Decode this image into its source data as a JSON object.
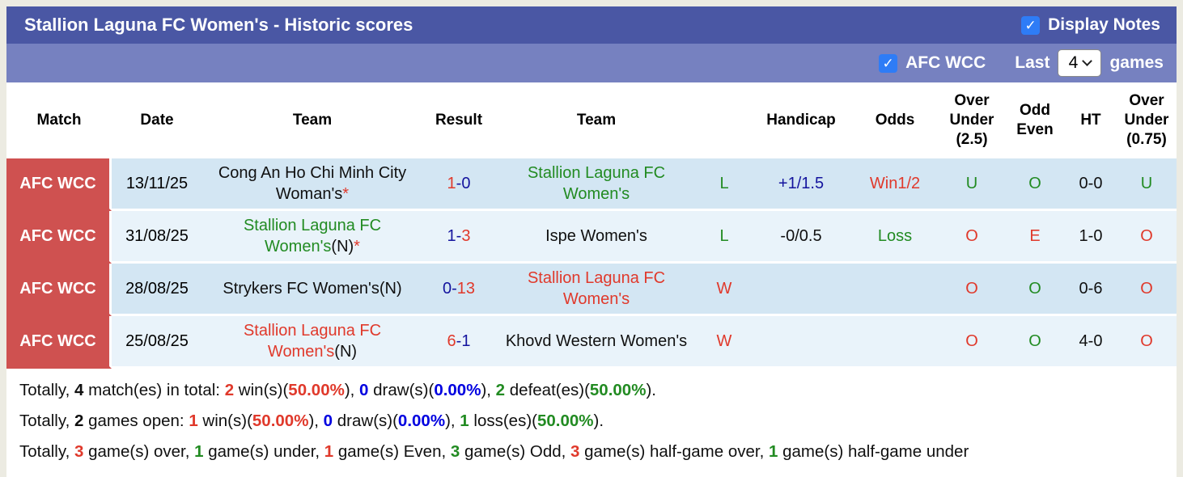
{
  "header": {
    "title": "Stallion Laguna FC Women's - Historic scores",
    "display_notes_label": "Display Notes",
    "display_notes_checked": true
  },
  "filter": {
    "competition_label": "AFC WCC",
    "competition_checked": true,
    "last_label": "Last",
    "games_count": "4",
    "games_label": "games"
  },
  "colors": {
    "red": "#e0392b",
    "green": "#228B22",
    "navy": "#14149e",
    "blue": "#0000e0",
    "black": "#101010",
    "title_bar": "#4a57a4",
    "filter_bar": "#7681c0",
    "checkbox_blue": "#2e7cf6",
    "match_cell_red": "#cf5150",
    "row_dark": "#d3e6f3",
    "row_light": "#e9f3fa"
  },
  "table": {
    "columns": [
      "Match",
      "Date",
      "Team",
      "Result",
      "Team",
      "",
      "Handicap",
      "Odds",
      "Over Under (2.5)",
      "Odd Even",
      "HT",
      "Over Under (0.75)"
    ],
    "rows": [
      {
        "match": "AFC WCC",
        "date": "13/11/25",
        "home": [
          {
            "t": "Cong An Ho Chi Minh City Woman's"
          },
          {
            "t": "*",
            "c": "red"
          }
        ],
        "result": [
          {
            "t": "1",
            "c": "red"
          },
          {
            "t": "-",
            "c": "navy"
          },
          {
            "t": "0",
            "c": "navy"
          }
        ],
        "away": [
          {
            "t": "Stallion Laguna FC Women's",
            "c": "green"
          }
        ],
        "wl": {
          "t": "L",
          "c": "green"
        },
        "handicap": {
          "t": "+1/1.5",
          "c": "navy"
        },
        "odds": {
          "t": "Win1/2",
          "c": "red"
        },
        "ou25": {
          "t": "U",
          "c": "green"
        },
        "odd_even": {
          "t": "O",
          "c": "green"
        },
        "ht": {
          "t": "0-0"
        },
        "ou075": {
          "t": "U",
          "c": "green"
        }
      },
      {
        "match": "AFC WCC",
        "date": "31/08/25",
        "home": [
          {
            "t": "Stallion Laguna FC Women's",
            "c": "green"
          },
          {
            "t": "(N)"
          },
          {
            "t": "*",
            "c": "red"
          }
        ],
        "result": [
          {
            "t": "1",
            "c": "navy"
          },
          {
            "t": "-",
            "c": "navy"
          },
          {
            "t": "3",
            "c": "red"
          }
        ],
        "away": [
          {
            "t": "Ispe Women's"
          }
        ],
        "wl": {
          "t": "L",
          "c": "green"
        },
        "handicap": {
          "t": "-0/0.5",
          "c": "black"
        },
        "odds": {
          "t": "Loss",
          "c": "green"
        },
        "ou25": {
          "t": "O",
          "c": "red"
        },
        "odd_even": {
          "t": "E",
          "c": "red"
        },
        "ht": {
          "t": "1-0"
        },
        "ou075": {
          "t": "O",
          "c": "red"
        }
      },
      {
        "match": "AFC WCC",
        "date": "28/08/25",
        "home": [
          {
            "t": "Strykers FC Women's(N)"
          }
        ],
        "result": [
          {
            "t": "0",
            "c": "navy"
          },
          {
            "t": "-",
            "c": "navy"
          },
          {
            "t": "13",
            "c": "red"
          }
        ],
        "away": [
          {
            "t": "Stallion Laguna FC Women's",
            "c": "red"
          }
        ],
        "wl": {
          "t": "W",
          "c": "red"
        },
        "handicap": {
          "t": ""
        },
        "odds": {
          "t": ""
        },
        "ou25": {
          "t": "O",
          "c": "red"
        },
        "odd_even": {
          "t": "O",
          "c": "green"
        },
        "ht": {
          "t": "0-6"
        },
        "ou075": {
          "t": "O",
          "c": "red"
        }
      },
      {
        "match": "AFC WCC",
        "date": "25/08/25",
        "home": [
          {
            "t": "Stallion Laguna FC Women's",
            "c": "red"
          },
          {
            "t": "(N)"
          }
        ],
        "result": [
          {
            "t": "6",
            "c": "red"
          },
          {
            "t": "-",
            "c": "navy"
          },
          {
            "t": "1",
            "c": "navy"
          }
        ],
        "away": [
          {
            "t": "Khovd Western Women's"
          }
        ],
        "wl": {
          "t": "W",
          "c": "red"
        },
        "handicap": {
          "t": ""
        },
        "odds": {
          "t": ""
        },
        "ou25": {
          "t": "O",
          "c": "red"
        },
        "odd_even": {
          "t": "O",
          "c": "green"
        },
        "ht": {
          "t": "4-0"
        },
        "ou075": {
          "t": "O",
          "c": "red"
        }
      }
    ]
  },
  "summary": {
    "lines": [
      [
        {
          "t": "Totally, "
        },
        {
          "t": "4",
          "b": true
        },
        {
          "t": " match(es) in total: "
        },
        {
          "t": "2",
          "c": "red",
          "b": true
        },
        {
          "t": " win(s)("
        },
        {
          "t": "50.00%",
          "c": "red",
          "b": true
        },
        {
          "t": "), "
        },
        {
          "t": "0",
          "c": "blue",
          "b": true
        },
        {
          "t": " draw(s)("
        },
        {
          "t": "0.00%",
          "c": "blue",
          "b": true
        },
        {
          "t": "), "
        },
        {
          "t": "2",
          "c": "green",
          "b": true
        },
        {
          "t": " defeat(es)("
        },
        {
          "t": "50.00%",
          "c": "green",
          "b": true
        },
        {
          "t": ")."
        }
      ],
      [
        {
          "t": "Totally, "
        },
        {
          "t": "2",
          "b": true
        },
        {
          "t": " games open: "
        },
        {
          "t": "1",
          "c": "red",
          "b": true
        },
        {
          "t": " win(s)("
        },
        {
          "t": "50.00%",
          "c": "red",
          "b": true
        },
        {
          "t": "), "
        },
        {
          "t": "0",
          "c": "blue",
          "b": true
        },
        {
          "t": " draw(s)("
        },
        {
          "t": "0.00%",
          "c": "blue",
          "b": true
        },
        {
          "t": "), "
        },
        {
          "t": "1",
          "c": "green",
          "b": true
        },
        {
          "t": " loss(es)("
        },
        {
          "t": "50.00%",
          "c": "green",
          "b": true
        },
        {
          "t": ")."
        }
      ],
      [
        {
          "t": "Totally, "
        },
        {
          "t": "3",
          "c": "red",
          "b": true
        },
        {
          "t": " game(s) over, "
        },
        {
          "t": "1",
          "c": "green",
          "b": true
        },
        {
          "t": " game(s) under, "
        },
        {
          "t": "1",
          "c": "red",
          "b": true
        },
        {
          "t": " game(s) Even, "
        },
        {
          "t": "3",
          "c": "green",
          "b": true
        },
        {
          "t": " game(s) Odd, "
        },
        {
          "t": "3",
          "c": "red",
          "b": true
        },
        {
          "t": " game(s) half-game over, "
        },
        {
          "t": "1",
          "c": "green",
          "b": true
        },
        {
          "t": " game(s) half-game under"
        }
      ]
    ]
  }
}
